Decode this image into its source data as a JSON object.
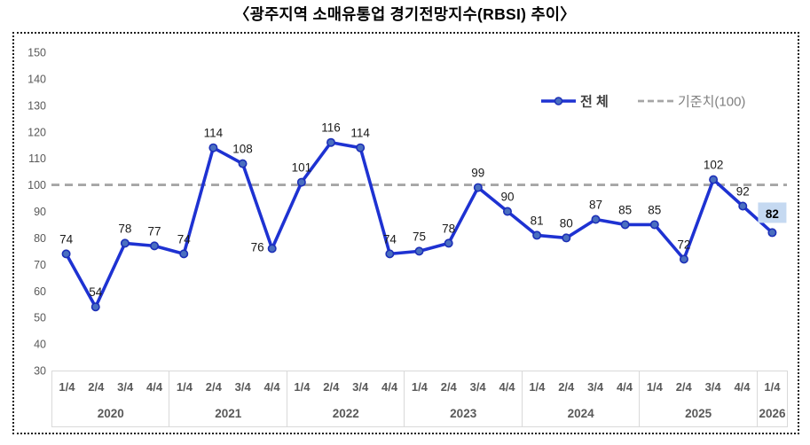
{
  "title": "〈광주지역 소매유통업 경기전망지수(RBSI) 추이〉",
  "legend": {
    "series": "전 체",
    "baseline": "기준치(100)"
  },
  "colors": {
    "line": "#1e32d2",
    "marker_fill": "#4a6fc0",
    "marker_stroke": "#1c2fb8",
    "baseline": "#a6a6a6",
    "highlight_bg": "#c5d9f1",
    "axis_text": "#595959",
    "data_label": "#1a1a1a",
    "table_border": "#d9d9d9",
    "legend_series_text": "#404040",
    "legend_baseline_text": "#7f7f7f"
  },
  "chart_data": {
    "type": "line",
    "title": "광주지역 소매유통업 경기전망지수(RBSI) 추이",
    "x_groups": [
      {
        "year": "2020",
        "quarters": [
          "1/4",
          "2/4",
          "3/4",
          "4/4"
        ]
      },
      {
        "year": "2021",
        "quarters": [
          "1/4",
          "2/4",
          "3/4",
          "4/4"
        ]
      },
      {
        "year": "2022",
        "quarters": [
          "1/4",
          "2/4",
          "3/4",
          "4/4"
        ]
      },
      {
        "year": "2023",
        "quarters": [
          "1/4",
          "2/4",
          "3/4",
          "4/4"
        ]
      },
      {
        "year": "2024",
        "quarters": [
          "1/4",
          "2/4",
          "3/4",
          "4/4"
        ]
      },
      {
        "year": "2025",
        "quarters": [
          "1/4",
          "2/4",
          "3/4",
          "4/4"
        ]
      },
      {
        "year": "2026",
        "quarters": [
          "1/4"
        ]
      }
    ],
    "series": [
      {
        "name": "전 체",
        "values": [
          74,
          54,
          78,
          77,
          74,
          114,
          108,
          76,
          101,
          116,
          114,
          74,
          75,
          78,
          99,
          90,
          81,
          80,
          87,
          85,
          85,
          72,
          102,
          92,
          82
        ]
      }
    ],
    "baseline": {
      "label": "기준치(100)",
      "value": 100
    },
    "ylim": [
      30,
      150
    ],
    "ytick_step": 10,
    "grid": false,
    "legend_position": "top-right",
    "highlight_last_value": true
  }
}
